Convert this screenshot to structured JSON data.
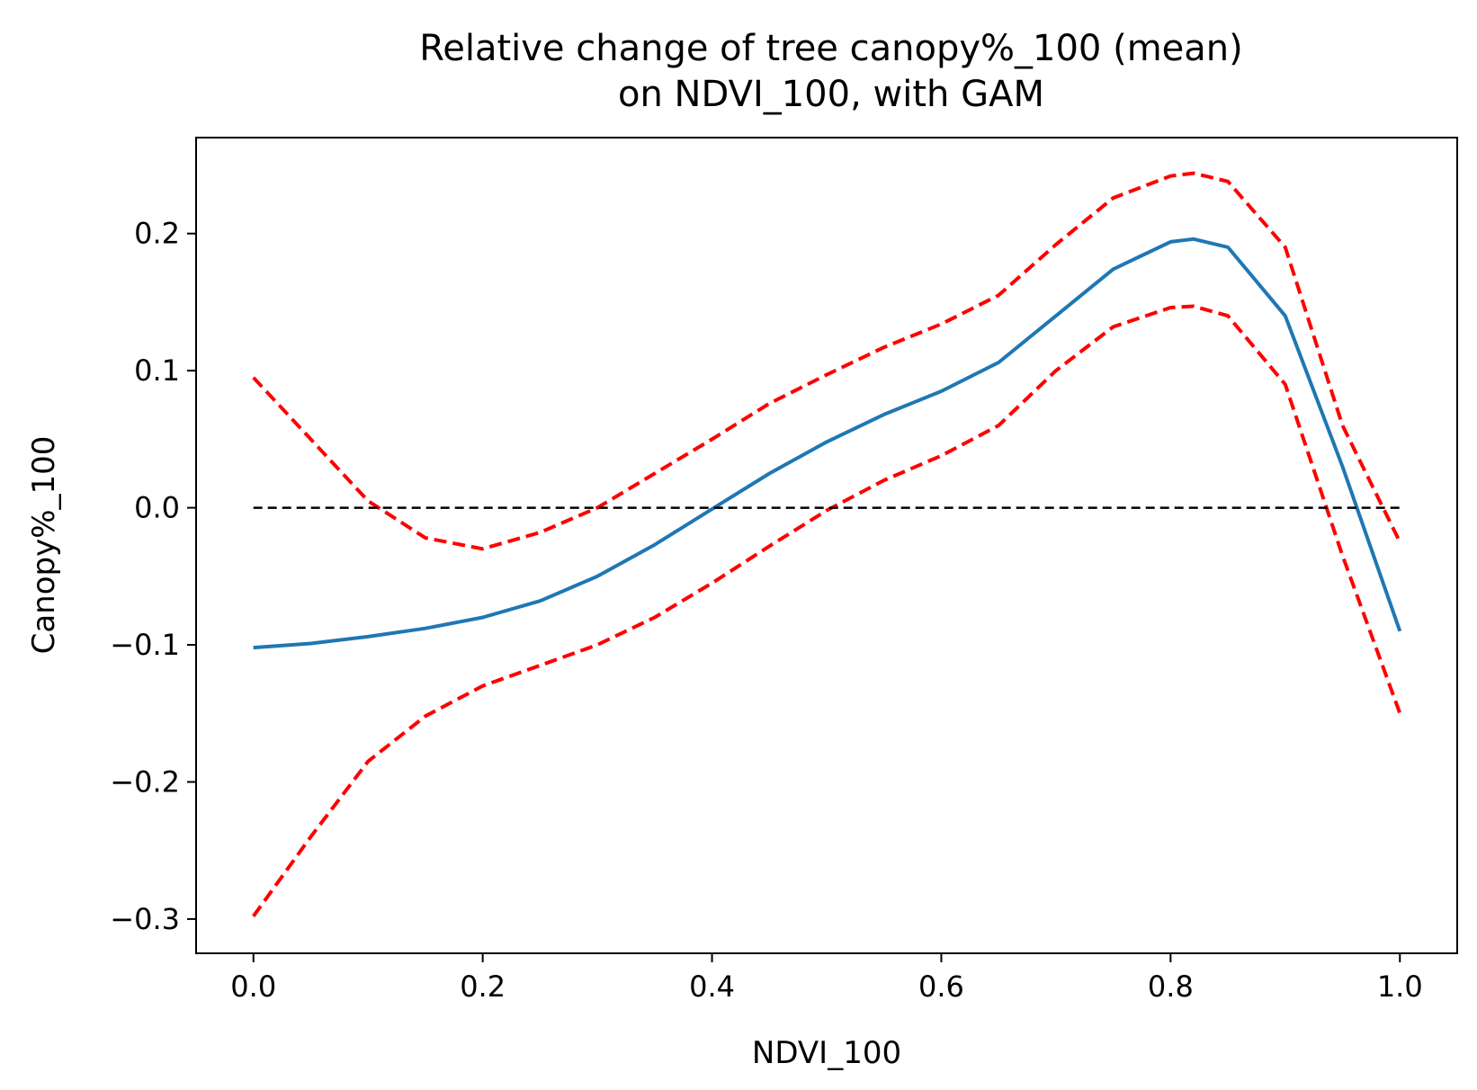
{
  "chart_data": {
    "type": "line",
    "title": "Relative change of tree canopy%_100 (mean)",
    "subtitle": "on NDVI_100, with GAM",
    "xlabel": "NDVI_100",
    "ylabel": "Canopy%_100",
    "xlim": [
      -0.05,
      1.05
    ],
    "ylim": [
      -0.325,
      0.27
    ],
    "xticks": [
      0.0,
      0.2,
      0.4,
      0.6,
      0.8,
      1.0
    ],
    "xtick_labels": [
      "0.0",
      "0.2",
      "0.4",
      "0.6",
      "0.8",
      "1.0"
    ],
    "yticks": [
      -0.3,
      -0.2,
      -0.1,
      0.0,
      0.1,
      0.2
    ],
    "ytick_labels": [
      "−0.3",
      "−0.2",
      "−0.1",
      "0.0",
      "0.1",
      "0.2"
    ],
    "grid": false,
    "legend": "none",
    "x": [
      0.0,
      0.05,
      0.1,
      0.15,
      0.2,
      0.25,
      0.3,
      0.35,
      0.4,
      0.45,
      0.5,
      0.55,
      0.6,
      0.65,
      0.7,
      0.75,
      0.8,
      0.82,
      0.85,
      0.9,
      0.95,
      1.0
    ],
    "series": [
      {
        "role": "estimate",
        "color": "#1f77b4",
        "style": "solid",
        "values": [
          -0.102,
          -0.099,
          -0.094,
          -0.088,
          -0.08,
          -0.068,
          -0.05,
          -0.027,
          -0.001,
          0.025,
          0.048,
          0.068,
          0.085,
          0.106,
          0.14,
          0.174,
          0.194,
          0.196,
          0.19,
          0.14,
          0.03,
          -0.09
        ]
      },
      {
        "role": "upper-bound",
        "color": "#ff0000",
        "style": "dashed",
        "values": [
          0.095,
          0.05,
          0.005,
          -0.022,
          -0.03,
          -0.018,
          0.0,
          0.025,
          0.05,
          0.076,
          0.097,
          0.117,
          0.134,
          0.155,
          0.192,
          0.226,
          0.242,
          0.244,
          0.238,
          0.19,
          0.06,
          -0.025
        ]
      },
      {
        "role": "lower-bound",
        "color": "#ff0000",
        "style": "dashed",
        "values": [
          -0.298,
          -0.24,
          -0.185,
          -0.152,
          -0.13,
          -0.115,
          -0.1,
          -0.08,
          -0.055,
          -0.028,
          -0.002,
          0.02,
          0.038,
          0.06,
          0.1,
          0.132,
          0.146,
          0.147,
          0.14,
          0.09,
          -0.035,
          -0.15
        ]
      },
      {
        "role": "zero-reference",
        "color": "#000000",
        "style": "dashed",
        "x": [
          0.0,
          1.0
        ],
        "values": [
          0.0,
          0.0
        ]
      }
    ]
  }
}
